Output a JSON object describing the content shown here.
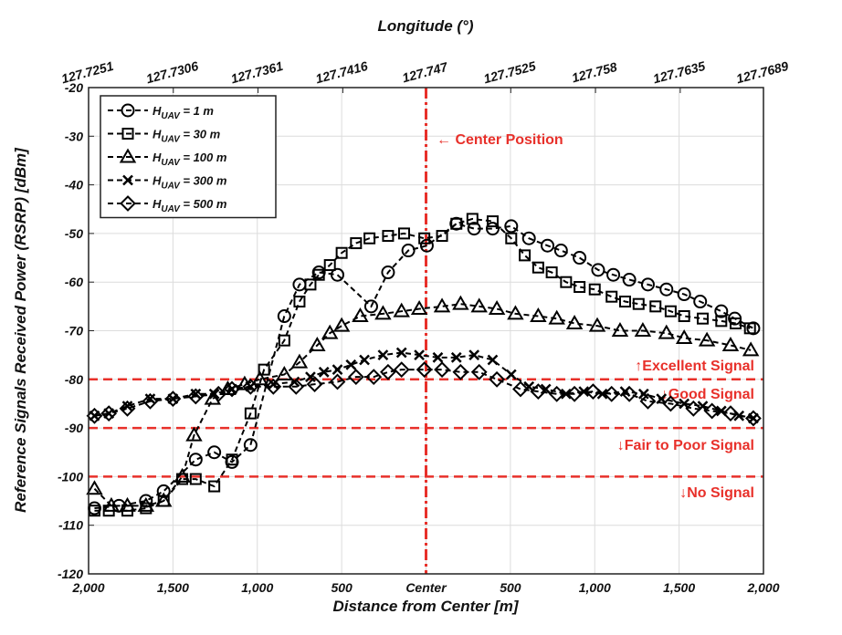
{
  "chart_data": {
    "type": "scatter-line",
    "x_label": "Distance from Center [m]",
    "y_label": "Reference Signals Received Power (RSRP) [dBm]",
    "x2_label": "Longitude (°)",
    "xlim": [
      -2000,
      2000
    ],
    "xticks": [
      {
        "value": -2000,
        "label": "2,000"
      },
      {
        "value": -1500,
        "label": "1,500"
      },
      {
        "value": -1000,
        "label": "1,000"
      },
      {
        "value": -500,
        "label": "500"
      },
      {
        "value": 0,
        "label": "Center"
      },
      {
        "value": 500,
        "label": "500"
      },
      {
        "value": 1000,
        "label": "1,000"
      },
      {
        "value": 1500,
        "label": "1,500"
      },
      {
        "value": 2000,
        "label": "2,000"
      }
    ],
    "x2lim": [
      127.7251,
      127.7689
    ],
    "x2ticks": [
      127.7251,
      127.7306,
      127.7361,
      127.7416,
      127.747,
      127.7525,
      127.758,
      127.7635,
      127.7689
    ],
    "ylim": [
      -120,
      -20
    ],
    "yticks": [
      -120,
      -110,
      -100,
      -90,
      -80,
      -70,
      -60,
      -50,
      -40,
      -30,
      -20
    ],
    "grid": true,
    "legend": "top-left",
    "reference_lines": {
      "color": "#e8302a",
      "y": [
        -80,
        -90,
        -100
      ],
      "x": [
        0
      ]
    },
    "annotations": [
      "← Center Position",
      "↑Excellent Signal",
      "↓Good Signal",
      "↓Fair to Poor Signal",
      "↓No Signal"
    ],
    "series": [
      {
        "name": "HUAV = 1 m",
        "color": "#000000",
        "marker": "circle",
        "x": [
          -1965,
          -1820,
          -1660,
          -1555,
          -1365,
          -1255,
          -1150,
          -1040,
          -840,
          -750,
          -635,
          -525,
          -325,
          -225,
          -105,
          5,
          180,
          285,
          395,
          505,
          610,
          720,
          800,
          910,
          1020,
          1110,
          1205,
          1315,
          1425,
          1530,
          1625,
          1750,
          1830,
          1940
        ],
        "values": [
          -106.5,
          -106,
          -105,
          -103,
          -96.5,
          -95,
          -97,
          -93.5,
          -67,
          -60.5,
          -58,
          -58.5,
          -65,
          -58,
          -53.5,
          -52.5,
          -48,
          -49,
          -49,
          -48.5,
          -51,
          -52.5,
          -53.5,
          -55,
          -57.5,
          -58.5,
          -59.5,
          -60.5,
          -61.5,
          -62.5,
          -64,
          -66,
          -67.5,
          -69.5
        ]
      },
      {
        "name": "HUAV = 30 m",
        "color": "#000000",
        "marker": "square",
        "x": [
          -1965,
          -1880,
          -1770,
          -1660,
          -1555,
          -1445,
          -1365,
          -1255,
          -1150,
          -1040,
          -960,
          -840,
          -750,
          -685,
          -635,
          -570,
          -500,
          -415,
          -335,
          -225,
          -130,
          -10,
          95,
          180,
          275,
          395,
          505,
          585,
          665,
          745,
          830,
          910,
          1000,
          1100,
          1180,
          1260,
          1360,
          1450,
          1530,
          1640,
          1750,
          1835,
          1920
        ],
        "values": [
          -107,
          -107,
          -107,
          -106.5,
          -105,
          -100.5,
          -100.5,
          -102,
          -96.5,
          -87,
          -78,
          -72,
          -64,
          -60.5,
          -58.5,
          -56.5,
          -54,
          -52,
          -51,
          -50.5,
          -50,
          -51,
          -50.5,
          -48,
          -47,
          -47.5,
          -51,
          -54.5,
          -57,
          -58,
          -60,
          -61,
          -61.5,
          -63,
          -64,
          -64.5,
          -65,
          -66,
          -67,
          -67.5,
          -68,
          -68.5,
          -69.5
        ]
      },
      {
        "name": "HUAV = 100 m",
        "color": "#000000",
        "marker": "triangle",
        "x": [
          -1965,
          -1865,
          -1770,
          -1660,
          -1555,
          -1445,
          -1375,
          -1265,
          -1175,
          -1075,
          -985,
          -840,
          -750,
          -645,
          -570,
          -500,
          -390,
          -255,
          -145,
          -40,
          95,
          205,
          315,
          420,
          530,
          665,
          775,
          880,
          1015,
          1150,
          1285,
          1425,
          1530,
          1665,
          1805,
          1925
        ],
        "values": [
          -102.5,
          -106,
          -106,
          -106,
          -105,
          -100,
          -91.5,
          -84,
          -82,
          -81,
          -80,
          -79,
          -76.5,
          -73,
          -70.5,
          -69,
          -67,
          -66.5,
          -66,
          -65.5,
          -65,
          -64.5,
          -65,
          -65.5,
          -66.5,
          -67,
          -67.5,
          -68.5,
          -69,
          -70,
          -70,
          -70.5,
          -71.5,
          -72,
          -73,
          -74
        ]
      },
      {
        "name": "HUAV = 300 m",
        "color": "#000000",
        "marker": "x",
        "x": [
          -1965,
          -1880,
          -1770,
          -1635,
          -1500,
          -1365,
          -1255,
          -1150,
          -1040,
          -905,
          -780,
          -685,
          -605,
          -525,
          -445,
          -365,
          -255,
          -145,
          -40,
          70,
          180,
          285,
          395,
          505,
          610,
          710,
          830,
          935,
          1045,
          1180,
          1290,
          1395,
          1530,
          1640,
          1750,
          1855,
          1940
        ],
        "values": [
          -87.5,
          -87,
          -85.5,
          -84,
          -84,
          -83,
          -83,
          -82,
          -81.5,
          -81,
          -80.5,
          -79.5,
          -78.5,
          -78,
          -77,
          -76,
          -75,
          -74.5,
          -75,
          -75.5,
          -75.5,
          -75,
          -76,
          -79,
          -81.5,
          -82,
          -83,
          -82.5,
          -83,
          -82.5,
          -83,
          -84,
          -85,
          -85.5,
          -86.5,
          -87.5,
          -88
        ]
      },
      {
        "name": "HUAV = 500 m",
        "color": "#000000",
        "marker": "diamond",
        "x": [
          -1965,
          -1880,
          -1770,
          -1635,
          -1500,
          -1365,
          -1230,
          -1150,
          -1040,
          -905,
          -770,
          -660,
          -525,
          -415,
          -310,
          -225,
          -145,
          -10,
          95,
          205,
          315,
          420,
          560,
          665,
          775,
          880,
          990,
          1100,
          1205,
          1315,
          1450,
          1585,
          1695,
          1805,
          1940
        ],
        "values": [
          -87.5,
          -87,
          -86,
          -84.5,
          -84,
          -83.5,
          -83,
          -82,
          -81.5,
          -81.5,
          -81.5,
          -81,
          -80.5,
          -79.5,
          -79.5,
          -78.5,
          -78,
          -78,
          -78,
          -78.5,
          -78.5,
          -80,
          -82,
          -82.5,
          -83,
          -83,
          -82.5,
          -83,
          -83,
          -84.5,
          -85,
          -86,
          -86.5,
          -87,
          -88
        ]
      }
    ]
  }
}
